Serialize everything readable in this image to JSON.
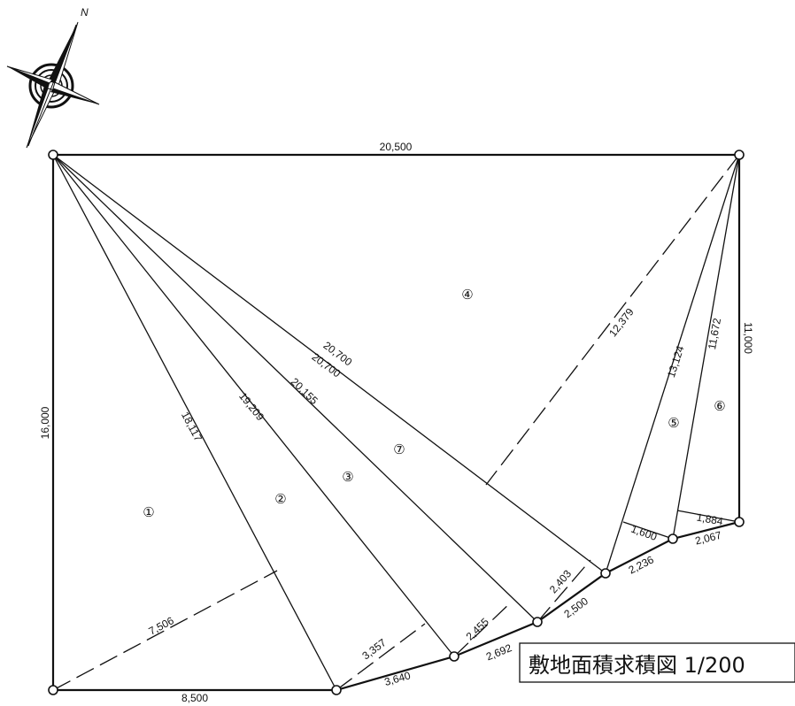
{
  "title": "敷地面積求積図 1/200",
  "north_label": "N",
  "dimensions": [
    {
      "key": "top",
      "text": "20,500"
    },
    {
      "key": "left",
      "text": "16,000"
    },
    {
      "key": "bottom",
      "text": "8,500"
    },
    {
      "key": "right",
      "text": "11,000"
    },
    {
      "key": "d18117",
      "text": "18,117"
    },
    {
      "key": "d19209",
      "text": "19,209"
    },
    {
      "key": "d20155",
      "text": "20,155"
    },
    {
      "key": "d20700a",
      "text": "20,700"
    },
    {
      "key": "d20700b",
      "text": "20,700"
    },
    {
      "key": "d12379",
      "text": "12,379"
    },
    {
      "key": "d13124",
      "text": "13,124"
    },
    {
      "key": "d11672",
      "text": "11,672"
    },
    {
      "key": "d7506",
      "text": "7,506"
    },
    {
      "key": "d3357",
      "text": "3,357"
    },
    {
      "key": "d3640",
      "text": "3,640"
    },
    {
      "key": "d2692",
      "text": "2,692"
    },
    {
      "key": "d2455",
      "text": "2,455"
    },
    {
      "key": "d2500",
      "text": "2,500"
    },
    {
      "key": "d2403",
      "text": "2,403"
    },
    {
      "key": "d2236",
      "text": "2,236"
    },
    {
      "key": "d1600",
      "text": "1,600"
    },
    {
      "key": "d2067",
      "text": "2,067"
    },
    {
      "key": "d1884",
      "text": "1,884"
    }
  ],
  "regions": [
    "①",
    "②",
    "③",
    "④",
    "⑤",
    "⑥",
    "⑦"
  ]
}
